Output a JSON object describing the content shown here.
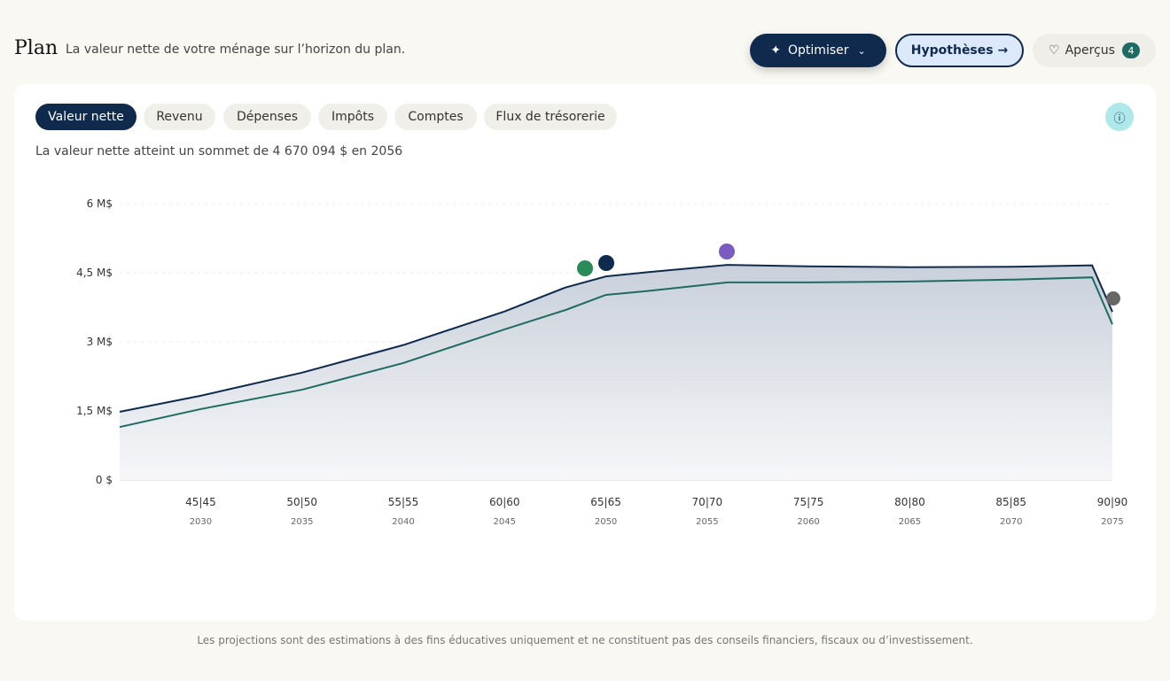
{
  "header": {
    "title": "Plan",
    "subtitle": "La valeur nette de votre ménage sur l’horizon du plan.",
    "buttons": [
      "Optimiser",
      "Hypothèses →",
      "Aperçus"
    ],
    "insights_count": 4
  },
  "tabs": [
    "Valeur nette",
    "Revenu",
    "Dépenses",
    "Impôts",
    "Comptes",
    "Flux de trésorerie"
  ],
  "chart_data": {
    "type": "line",
    "subtitle": "La valeur nette atteint un sommet de 4 670 094 $ en 2056",
    "x": [
      2026,
      2030,
      2035,
      2040,
      2045,
      2048,
      2050,
      2052,
      2056,
      2060,
      2065,
      2070,
      2074,
      2075
    ],
    "series": [
      {
        "color": "#0f2a4d",
        "values": [
          1480000,
          1830000,
          2330000,
          2930000,
          3660000,
          4180000,
          4420000,
          4510000,
          4670094,
          4640000,
          4620000,
          4630000,
          4660000,
          3650000
        ]
      },
      {
        "color": "#1f6b63",
        "values": [
          1150000,
          1540000,
          1960000,
          2540000,
          3270000,
          3690000,
          4020000,
          4100000,
          4290000,
          4290000,
          4310000,
          4350000,
          4400000,
          3380000
        ]
      }
    ],
    "xlim": [
      2026,
      2075
    ],
    "xticks": [
      2030,
      2035,
      2040,
      2045,
      2050,
      2055,
      2060,
      2065,
      2070,
      2075
    ],
    "xtick_ages": [
      "45|45",
      "50|50",
      "55|55",
      "60|60",
      "65|65",
      "70|70",
      "75|75",
      "80|80",
      "85|85",
      "90|90"
    ],
    "ylim": [
      0,
      6000000
    ],
    "yticks": [
      {
        "value": 0,
        "label": "0 $"
      },
      {
        "value": 1500000,
        "label": "1,5 M$"
      },
      {
        "value": 3000000,
        "label": "3 M$"
      },
      {
        "value": 4500000,
        "label": "4,5 M$"
      },
      {
        "value": 6000000,
        "label": "6 M$"
      }
    ],
    "grid": true
  },
  "footer": "Les projections sont des estimations à des fins éducatives uniquement et ne constituent pas des conseils financiers, fiscaux ou d’investissement."
}
